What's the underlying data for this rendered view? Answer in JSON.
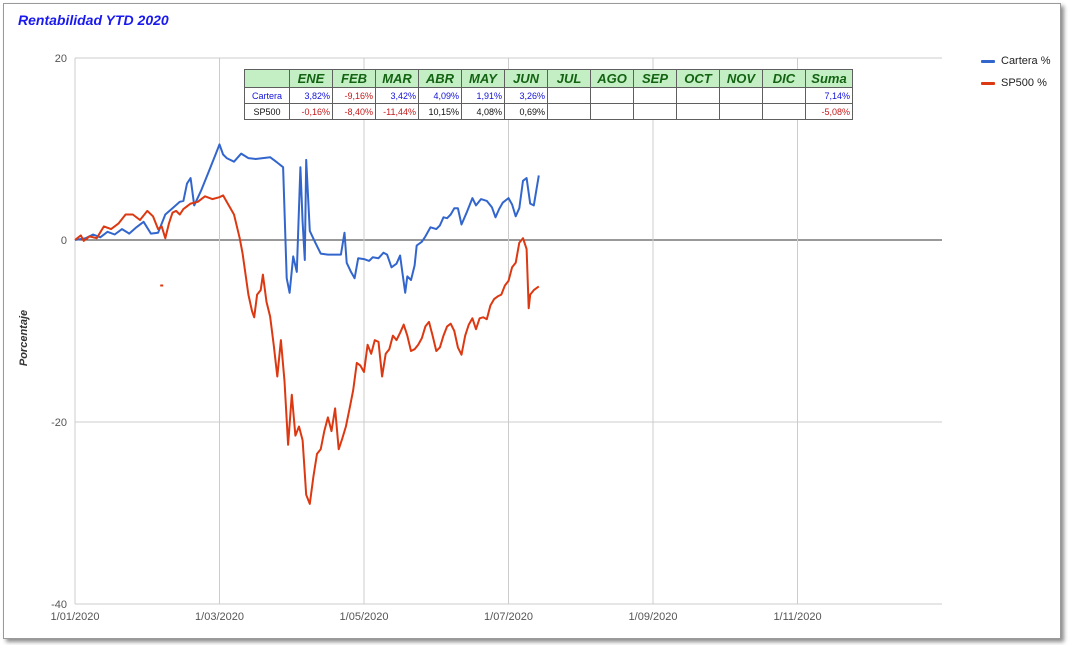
{
  "chart_data": {
    "type": "line",
    "title": "Rentabilidad YTD 2020",
    "ylabel": "Porcentaje",
    "xlabel": "",
    "ylim": [
      -40,
      20
    ],
    "yticks": [
      "20",
      "0",
      "-20",
      "-40"
    ],
    "xlim": [
      "2020-01-01",
      "2020-12-31"
    ],
    "xticks": [
      "1/01/2020",
      "1/03/2020",
      "1/05/2020",
      "1/07/2020",
      "1/09/2020",
      "1/11/2020"
    ],
    "grid": true,
    "legend_position": "right",
    "x_format": "month_fraction",
    "series": [
      {
        "name": "Cartera %",
        "color": "#3366cc",
        "points": [
          [
            1,
            0
          ],
          [
            1.15,
            0.2
          ],
          [
            1.25,
            0.6
          ],
          [
            1.35,
            0.3
          ],
          [
            1.45,
            0.9
          ],
          [
            1.55,
            0.6
          ],
          [
            1.65,
            1.2
          ],
          [
            1.75,
            0.7
          ],
          [
            1.85,
            1.4
          ],
          [
            1.95,
            2.0
          ],
          [
            2.05,
            0.7
          ],
          [
            2.15,
            0.8
          ],
          [
            2.25,
            2.8
          ],
          [
            2.35,
            3.5
          ],
          [
            2.45,
            4.2
          ],
          [
            2.5,
            4.3
          ],
          [
            2.55,
            6.2
          ],
          [
            2.6,
            6.8
          ],
          [
            2.65,
            3.8
          ],
          [
            2.75,
            5.5
          ],
          [
            2.85,
            7.5
          ],
          [
            2.95,
            9.5
          ],
          [
            3.0,
            10.5
          ],
          [
            3.05,
            9.4
          ],
          [
            3.1,
            9.0
          ],
          [
            3.15,
            8.8
          ],
          [
            3.2,
            8.6
          ],
          [
            3.3,
            9.5
          ],
          [
            3.4,
            9.0
          ],
          [
            3.5,
            8.9
          ],
          [
            3.6,
            9.0
          ],
          [
            3.7,
            9.1
          ],
          [
            3.8,
            8.5
          ],
          [
            3.88,
            8.0
          ],
          [
            3.93,
            -4.2
          ],
          [
            3.97,
            -5.8
          ],
          [
            4.02,
            -1.8
          ],
          [
            4.07,
            -3.5
          ],
          [
            4.12,
            8.0
          ],
          [
            4.15,
            2.0
          ],
          [
            4.18,
            -2.2
          ],
          [
            4.2,
            8.8
          ],
          [
            4.25,
            1.0
          ],
          [
            4.32,
            -0.2
          ],
          [
            4.4,
            -1.5
          ],
          [
            4.5,
            -1.6
          ],
          [
            4.6,
            -1.6
          ],
          [
            4.68,
            -1.6
          ],
          [
            4.73,
            0.8
          ],
          [
            4.76,
            -2.5
          ],
          [
            4.82,
            -3.5
          ],
          [
            4.87,
            -4.2
          ],
          [
            4.92,
            -2.0
          ],
          [
            5.0,
            -2.1
          ],
          [
            5.07,
            -2.3
          ],
          [
            5.12,
            -1.9
          ],
          [
            5.2,
            -2.0
          ],
          [
            5.27,
            -1.4
          ],
          [
            5.32,
            -1.6
          ],
          [
            5.38,
            -3.0
          ],
          [
            5.45,
            -2.6
          ],
          [
            5.5,
            -1.7
          ],
          [
            5.53,
            -3.5
          ],
          [
            5.57,
            -5.8
          ],
          [
            5.6,
            -4.0
          ],
          [
            5.65,
            -4.4
          ],
          [
            5.7,
            -2.8
          ],
          [
            5.73,
            -0.6
          ],
          [
            5.8,
            -0.2
          ],
          [
            5.85,
            0.4
          ],
          [
            5.92,
            1.4
          ],
          [
            6.0,
            1.2
          ],
          [
            6.05,
            1.6
          ],
          [
            6.1,
            2.5
          ],
          [
            6.15,
            2.4
          ],
          [
            6.2,
            2.8
          ],
          [
            6.25,
            3.5
          ],
          [
            6.3,
            3.5
          ],
          [
            6.35,
            1.7
          ],
          [
            6.42,
            3.0
          ],
          [
            6.5,
            4.6
          ],
          [
            6.55,
            3.8
          ],
          [
            6.62,
            4.5
          ],
          [
            6.7,
            4.3
          ],
          [
            6.77,
            3.6
          ],
          [
            6.82,
            2.5
          ],
          [
            6.87,
            3.4
          ],
          [
            6.92,
            4.1
          ],
          [
            7.0,
            4.6
          ],
          [
            7.05,
            3.9
          ],
          [
            7.1,
            2.6
          ],
          [
            7.15,
            3.5
          ],
          [
            7.2,
            6.5
          ],
          [
            7.25,
            6.8
          ],
          [
            7.3,
            4.0
          ],
          [
            7.35,
            3.8
          ],
          [
            7.42,
            7.1
          ]
        ]
      },
      {
        "name": "SP500 %",
        "color": "#dc3912",
        "points": [
          [
            1,
            0
          ],
          [
            1.08,
            0.5
          ],
          [
            1.12,
            -0.1
          ],
          [
            1.2,
            0.4
          ],
          [
            1.3,
            0.2
          ],
          [
            1.4,
            1.5
          ],
          [
            1.5,
            1.2
          ],
          [
            1.6,
            1.8
          ],
          [
            1.7,
            2.8
          ],
          [
            1.8,
            2.8
          ],
          [
            1.9,
            2.2
          ],
          [
            2.0,
            3.2
          ],
          [
            2.08,
            2.6
          ],
          [
            2.15,
            1.2
          ],
          [
            2.2,
            1.5
          ],
          [
            2.25,
            0.2
          ],
          [
            2.3,
            1.8
          ],
          [
            2.35,
            3.0
          ],
          [
            2.4,
            3.2
          ],
          [
            2.45,
            2.8
          ],
          [
            2.5,
            3.4
          ],
          [
            2.6,
            4.0
          ],
          [
            2.7,
            4.2
          ],
          [
            2.8,
            4.8
          ],
          [
            2.9,
            4.5
          ],
          [
            3.0,
            4.7
          ],
          [
            3.05,
            4.9
          ],
          [
            3.1,
            4.2
          ],
          [
            3.2,
            2.8
          ],
          [
            3.28,
            0.2
          ],
          [
            3.32,
            -1.5
          ],
          [
            3.4,
            -6.0
          ],
          [
            3.45,
            -7.8
          ],
          [
            3.48,
            -8.5
          ],
          [
            3.52,
            -6.0
          ],
          [
            3.57,
            -5.5
          ],
          [
            3.6,
            -3.8
          ],
          [
            3.65,
            -6.8
          ],
          [
            3.7,
            -8.4
          ],
          [
            3.75,
            -11.5
          ],
          [
            3.8,
            -15.0
          ],
          [
            3.85,
            -11.0
          ],
          [
            3.9,
            -15.5
          ],
          [
            3.95,
            -22.5
          ],
          [
            4.0,
            -17.0
          ],
          [
            4.05,
            -21.5
          ],
          [
            4.1,
            -20.5
          ],
          [
            4.15,
            -22.0
          ],
          [
            4.2,
            -28.0
          ],
          [
            4.25,
            -29.0
          ],
          [
            4.3,
            -26.0
          ],
          [
            4.35,
            -23.5
          ],
          [
            4.4,
            -23.0
          ],
          [
            4.45,
            -21.0
          ],
          [
            4.5,
            -19.5
          ],
          [
            4.55,
            -21.0
          ],
          [
            4.6,
            -18.5
          ],
          [
            4.65,
            -23.0
          ],
          [
            4.7,
            -21.8
          ],
          [
            4.75,
            -20.5
          ],
          [
            4.8,
            -18.5
          ],
          [
            4.85,
            -16.5
          ],
          [
            4.9,
            -13.5
          ],
          [
            4.95,
            -13.8
          ],
          [
            5.0,
            -14.5
          ],
          [
            5.05,
            -11.5
          ],
          [
            5.1,
            -12.5
          ],
          [
            5.15,
            -11.0
          ],
          [
            5.2,
            -11.2
          ],
          [
            5.25,
            -15.0
          ],
          [
            5.3,
            -12.5
          ],
          [
            5.35,
            -12.0
          ],
          [
            5.4,
            -10.5
          ],
          [
            5.45,
            -11.0
          ],
          [
            5.5,
            -10.2
          ],
          [
            5.55,
            -9.3
          ],
          [
            5.6,
            -10.5
          ],
          [
            5.65,
            -12.2
          ],
          [
            5.7,
            -12.0
          ],
          [
            5.75,
            -11.5
          ],
          [
            5.8,
            -10.8
          ],
          [
            5.85,
            -9.5
          ],
          [
            5.9,
            -9.0
          ],
          [
            5.95,
            -10.5
          ],
          [
            6.0,
            -12.2
          ],
          [
            6.05,
            -11.8
          ],
          [
            6.1,
            -10.5
          ],
          [
            6.15,
            -9.5
          ],
          [
            6.2,
            -9.2
          ],
          [
            6.25,
            -10.0
          ],
          [
            6.3,
            -11.8
          ],
          [
            6.35,
            -12.6
          ],
          [
            6.4,
            -10.5
          ],
          [
            6.45,
            -9.3
          ],
          [
            6.5,
            -8.6
          ],
          [
            6.55,
            -9.8
          ],
          [
            6.6,
            -8.6
          ],
          [
            6.65,
            -8.5
          ],
          [
            6.7,
            -8.7
          ],
          [
            6.75,
            -7.2
          ],
          [
            6.8,
            -6.5
          ],
          [
            6.85,
            -6.2
          ],
          [
            6.9,
            -6.0
          ],
          [
            6.95,
            -5.0
          ],
          [
            7.0,
            -4.5
          ],
          [
            7.05,
            -3.0
          ],
          [
            7.1,
            -2.5
          ],
          [
            7.15,
            -0.3
          ],
          [
            7.2,
            0.2
          ],
          [
            7.25,
            -1.0
          ],
          [
            7.28,
            -7.5
          ],
          [
            7.3,
            -6.0
          ],
          [
            7.35,
            -5.5
          ],
          [
            7.42,
            -5.1
          ]
        ]
      }
    ],
    "stray_points": [
      {
        "series": "SP500 %",
        "x": 2.2,
        "y": -5.0
      }
    ],
    "table": {
      "headers": [
        "",
        "ENE",
        "FEB",
        "MAR",
        "ABR",
        "MAY",
        "JUN",
        "JUL",
        "AGO",
        "SEP",
        "OCT",
        "NOV",
        "DIC",
        "Suma"
      ],
      "rows": [
        {
          "label": "Cartera",
          "color": "#1212d9",
          "cells": [
            {
              "v": "3,82%",
              "c": "blue"
            },
            {
              "v": "-9,16%",
              "c": "red"
            },
            {
              "v": "3,42%",
              "c": "blue"
            },
            {
              "v": "4,09%",
              "c": "blue"
            },
            {
              "v": "1,91%",
              "c": "blue"
            },
            {
              "v": "3,26%",
              "c": "blue"
            },
            {
              "v": "",
              "c": "black"
            },
            {
              "v": "",
              "c": "black"
            },
            {
              "v": "",
              "c": "black"
            },
            {
              "v": "",
              "c": "black"
            },
            {
              "v": "",
              "c": "black"
            },
            {
              "v": "",
              "c": "black"
            },
            {
              "v": "7,14%",
              "c": "blue"
            }
          ]
        },
        {
          "label": "SP500",
          "color": "#111111",
          "cells": [
            {
              "v": "-0,16%",
              "c": "red"
            },
            {
              "v": "-8,40%",
              "c": "red"
            },
            {
              "v": "-11,44%",
              "c": "red"
            },
            {
              "v": "10,15%",
              "c": "black"
            },
            {
              "v": "4,08%",
              "c": "black"
            },
            {
              "v": "0,69%",
              "c": "black"
            },
            {
              "v": "",
              "c": "black"
            },
            {
              "v": "",
              "c": "black"
            },
            {
              "v": "",
              "c": "black"
            },
            {
              "v": "",
              "c": "black"
            },
            {
              "v": "",
              "c": "black"
            },
            {
              "v": "",
              "c": "black"
            },
            {
              "v": "-5,08%",
              "c": "red"
            }
          ]
        }
      ]
    }
  }
}
